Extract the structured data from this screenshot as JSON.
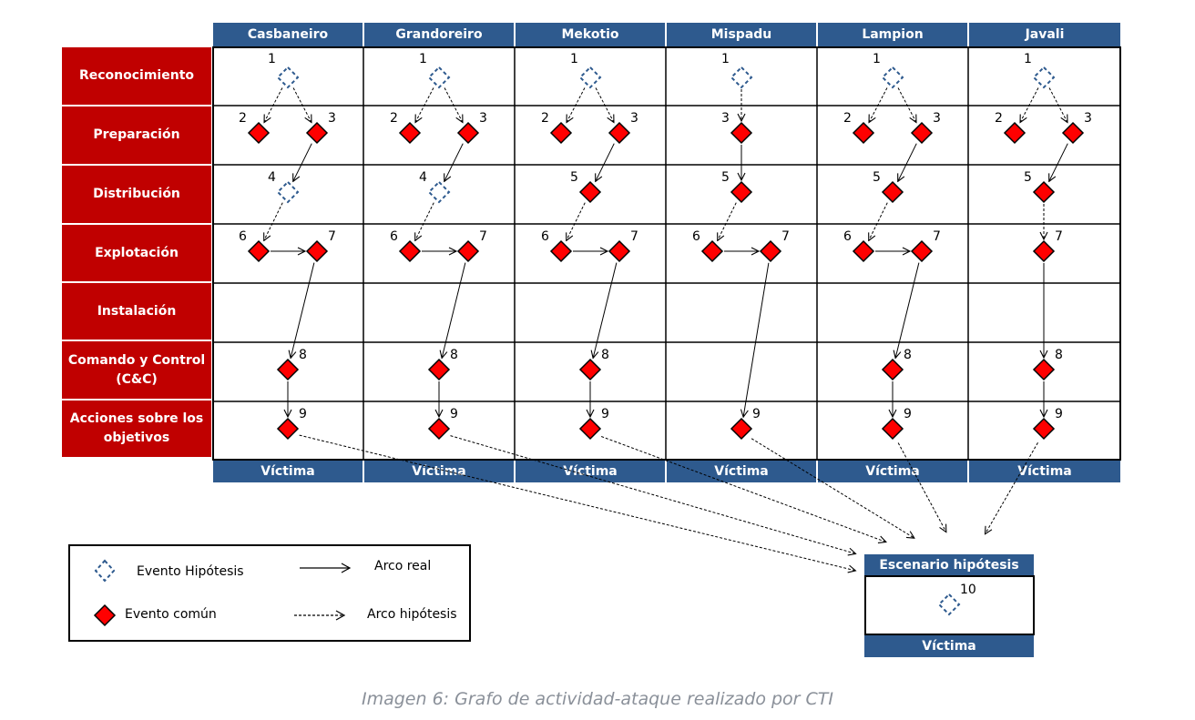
{
  "columns": [
    "Casbaneiro",
    "Grandoreiro",
    "Mekotio",
    "Mispadu",
    "Lampion",
    "Javali"
  ],
  "footer_label": "Víctima",
  "rows": [
    "Reconocimiento",
    "Preparación",
    "Distribución",
    "Explotación",
    "Instalación",
    "Comando y Control (C&C)",
    "Acciones sobre los objetivos"
  ],
  "legend": {
    "hypothesis_event": "Evento Hipótesis",
    "common_event": "Evento común",
    "real_arc": "Arco real",
    "hypothesis_arc": "Arco hipótesis"
  },
  "scenario": {
    "header": "Escenario hipótesis",
    "node_number": "10",
    "footer": "Víctima"
  },
  "caption": "Imagen 6: Grafo de actividad-ataque realizado por CTI",
  "colors": {
    "header_blue": "#2e5a8e",
    "row_red": "#c00000",
    "event_red": "#ff0000",
    "hypothesis_blue": "#2e5a8e"
  },
  "graph": [
    {
      "malware": "Casbaneiro",
      "nodes": [
        {
          "n": "1",
          "row": 0,
          "pos": "center",
          "type": "hypothesis"
        },
        {
          "n": "2",
          "row": 1,
          "pos": "left",
          "type": "common"
        },
        {
          "n": "3",
          "row": 1,
          "pos": "right",
          "type": "common"
        },
        {
          "n": "4",
          "row": 2,
          "pos": "center",
          "type": "hypothesis"
        },
        {
          "n": "6",
          "row": 3,
          "pos": "left",
          "type": "common"
        },
        {
          "n": "7",
          "row": 3,
          "pos": "right",
          "type": "common"
        },
        {
          "n": "8",
          "row": 5,
          "pos": "center",
          "type": "common"
        },
        {
          "n": "9",
          "row": 6,
          "pos": "center",
          "type": "common"
        }
      ],
      "arcs": [
        [
          "1",
          "2",
          "hypothesis"
        ],
        [
          "1",
          "3",
          "hypothesis"
        ],
        [
          "3",
          "4",
          "real"
        ],
        [
          "4",
          "6",
          "hypothesis"
        ],
        [
          "6",
          "7",
          "real"
        ],
        [
          "7",
          "8",
          "real"
        ],
        [
          "8",
          "9",
          "real"
        ]
      ]
    },
    {
      "malware": "Grandoreiro",
      "nodes": [
        {
          "n": "1",
          "row": 0,
          "pos": "center",
          "type": "hypothesis"
        },
        {
          "n": "2",
          "row": 1,
          "pos": "left",
          "type": "common"
        },
        {
          "n": "3",
          "row": 1,
          "pos": "right",
          "type": "common"
        },
        {
          "n": "4",
          "row": 2,
          "pos": "center",
          "type": "hypothesis"
        },
        {
          "n": "6",
          "row": 3,
          "pos": "left",
          "type": "common"
        },
        {
          "n": "7",
          "row": 3,
          "pos": "right",
          "type": "common"
        },
        {
          "n": "8",
          "row": 5,
          "pos": "center",
          "type": "common"
        },
        {
          "n": "9",
          "row": 6,
          "pos": "center",
          "type": "common"
        }
      ],
      "arcs": [
        [
          "1",
          "2",
          "hypothesis"
        ],
        [
          "1",
          "3",
          "hypothesis"
        ],
        [
          "3",
          "4",
          "real"
        ],
        [
          "4",
          "6",
          "hypothesis"
        ],
        [
          "6",
          "7",
          "real"
        ],
        [
          "7",
          "8",
          "real"
        ],
        [
          "8",
          "9",
          "real"
        ]
      ]
    },
    {
      "malware": "Mekotio",
      "nodes": [
        {
          "n": "1",
          "row": 0,
          "pos": "center",
          "type": "hypothesis"
        },
        {
          "n": "2",
          "row": 1,
          "pos": "left",
          "type": "common"
        },
        {
          "n": "3",
          "row": 1,
          "pos": "right",
          "type": "common"
        },
        {
          "n": "5",
          "row": 2,
          "pos": "center",
          "type": "common"
        },
        {
          "n": "6",
          "row": 3,
          "pos": "left",
          "type": "common"
        },
        {
          "n": "7",
          "row": 3,
          "pos": "right",
          "type": "common"
        },
        {
          "n": "8",
          "row": 5,
          "pos": "center",
          "type": "common"
        },
        {
          "n": "9",
          "row": 6,
          "pos": "center",
          "type": "common"
        }
      ],
      "arcs": [
        [
          "1",
          "2",
          "hypothesis"
        ],
        [
          "1",
          "3",
          "hypothesis"
        ],
        [
          "3",
          "5",
          "real"
        ],
        [
          "5",
          "6",
          "hypothesis"
        ],
        [
          "6",
          "7",
          "real"
        ],
        [
          "7",
          "8",
          "real"
        ],
        [
          "8",
          "9",
          "real"
        ]
      ]
    },
    {
      "malware": "Mispadu",
      "nodes": [
        {
          "n": "1",
          "row": 0,
          "pos": "center",
          "type": "hypothesis"
        },
        {
          "n": "3",
          "row": 1,
          "pos": "center",
          "type": "common"
        },
        {
          "n": "5",
          "row": 2,
          "pos": "center",
          "type": "common"
        },
        {
          "n": "6",
          "row": 3,
          "pos": "left",
          "type": "common"
        },
        {
          "n": "7",
          "row": 3,
          "pos": "right",
          "type": "common"
        },
        {
          "n": "9",
          "row": 6,
          "pos": "center",
          "type": "common"
        }
      ],
      "arcs": [
        [
          "1",
          "3",
          "hypothesis"
        ],
        [
          "3",
          "5",
          "real"
        ],
        [
          "5",
          "6",
          "hypothesis"
        ],
        [
          "6",
          "7",
          "real"
        ],
        [
          "7",
          "9",
          "real"
        ]
      ]
    },
    {
      "malware": "Lampion",
      "nodes": [
        {
          "n": "1",
          "row": 0,
          "pos": "center",
          "type": "hypothesis"
        },
        {
          "n": "2",
          "row": 1,
          "pos": "left",
          "type": "common"
        },
        {
          "n": "3",
          "row": 1,
          "pos": "right",
          "type": "common"
        },
        {
          "n": "5",
          "row": 2,
          "pos": "center",
          "type": "common"
        },
        {
          "n": "6",
          "row": 3,
          "pos": "left",
          "type": "common"
        },
        {
          "n": "7",
          "row": 3,
          "pos": "right",
          "type": "common"
        },
        {
          "n": "8",
          "row": 5,
          "pos": "center",
          "type": "common"
        },
        {
          "n": "9",
          "row": 6,
          "pos": "center",
          "type": "common"
        }
      ],
      "arcs": [
        [
          "1",
          "2",
          "hypothesis"
        ],
        [
          "1",
          "3",
          "hypothesis"
        ],
        [
          "3",
          "5",
          "real"
        ],
        [
          "5",
          "6",
          "hypothesis"
        ],
        [
          "6",
          "7",
          "real"
        ],
        [
          "7",
          "8",
          "real"
        ],
        [
          "8",
          "9",
          "real"
        ]
      ]
    },
    {
      "malware": "Javali",
      "nodes": [
        {
          "n": "1",
          "row": 0,
          "pos": "center",
          "type": "hypothesis"
        },
        {
          "n": "2",
          "row": 1,
          "pos": "left",
          "type": "common"
        },
        {
          "n": "3",
          "row": 1,
          "pos": "right",
          "type": "common"
        },
        {
          "n": "5",
          "row": 2,
          "pos": "center",
          "type": "common"
        },
        {
          "n": "7",
          "row": 3,
          "pos": "center",
          "type": "common"
        },
        {
          "n": "8",
          "row": 5,
          "pos": "center",
          "type": "common"
        },
        {
          "n": "9",
          "row": 6,
          "pos": "center",
          "type": "common"
        }
      ],
      "arcs": [
        [
          "1",
          "2",
          "hypothesis"
        ],
        [
          "1",
          "3",
          "hypothesis"
        ],
        [
          "3",
          "5",
          "real"
        ],
        [
          "5",
          "7",
          "hypothesis"
        ],
        [
          "7",
          "8",
          "real"
        ],
        [
          "8",
          "9",
          "real"
        ]
      ]
    }
  ]
}
